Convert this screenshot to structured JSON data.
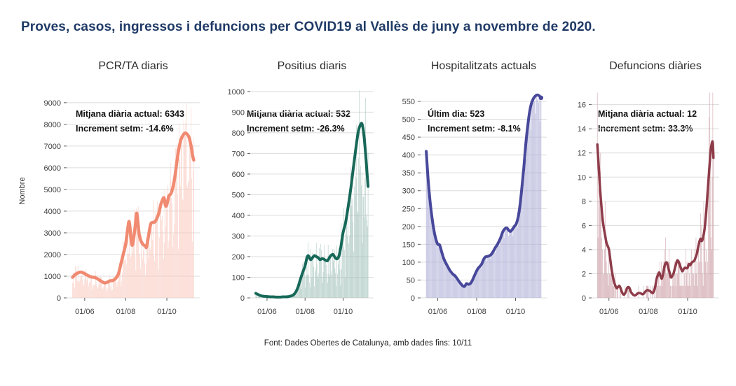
{
  "page": {
    "title": "Proves, casos, ingressos i defuncions per COVID19 al Vallès de juny a novembre de 2020.",
    "title_color": "#1f3a66",
    "footer": "Font: Dades Obertes de Catalunya, amb dades fins: 10/11",
    "y_axis_label": "Nombre",
    "background": "#ffffff",
    "gridline_color": "#dcdcdc",
    "axis_text_color": "#3f3f3f"
  },
  "chart_data": [
    {
      "type": "bar",
      "subtype": "daily-bars-with-trend-line",
      "title": "PCR/TA diaris",
      "annotation_lines": [
        "Mitjana diària actual: 6343",
        "Increment setm: -14.6%"
      ],
      "line_color": "#f08a71",
      "bar_color": "#f9c9be",
      "ymax": 9800,
      "yticks": [
        0,
        1000,
        2000,
        3000,
        4000,
        5000,
        6000,
        7000,
        8000,
        9000
      ],
      "days": 180,
      "xticks": [
        {
          "day": 18,
          "label": "01/06"
        },
        {
          "day": 79,
          "label": "01/08"
        },
        {
          "day": 140,
          "label": "01/10"
        }
      ],
      "trend": [
        [
          0,
          950
        ],
        [
          4,
          1080
        ],
        [
          8,
          1150
        ],
        [
          12,
          1190
        ],
        [
          16,
          1150
        ],
        [
          20,
          1080
        ],
        [
          24,
          1010
        ],
        [
          28,
          960
        ],
        [
          32,
          950
        ],
        [
          36,
          900
        ],
        [
          40,
          820
        ],
        [
          44,
          740
        ],
        [
          48,
          690
        ],
        [
          52,
          730
        ],
        [
          56,
          790
        ],
        [
          60,
          800
        ],
        [
          64,
          900
        ],
        [
          68,
          1100
        ],
        [
          72,
          1600
        ],
        [
          76,
          2100
        ],
        [
          79,
          2500
        ],
        [
          82,
          3200
        ],
        [
          84,
          3520
        ],
        [
          86,
          3000
        ],
        [
          88,
          2450
        ],
        [
          90,
          2600
        ],
        [
          93,
          3300
        ],
        [
          95,
          3900
        ],
        [
          97,
          3500
        ],
        [
          99,
          2900
        ],
        [
          102,
          2600
        ],
        [
          105,
          2450
        ],
        [
          108,
          2400
        ],
        [
          110,
          2350
        ],
        [
          113,
          2900
        ],
        [
          116,
          3400
        ],
        [
          119,
          3480
        ],
        [
          122,
          3500
        ],
        [
          125,
          3650
        ],
        [
          128,
          3900
        ],
        [
          131,
          4300
        ],
        [
          134,
          4550
        ],
        [
          136,
          4600
        ],
        [
          138,
          4250
        ],
        [
          140,
          4300
        ],
        [
          143,
          4700
        ],
        [
          146,
          4800
        ],
        [
          149,
          5100
        ],
        [
          152,
          5600
        ],
        [
          155,
          6300
        ],
        [
          158,
          6900
        ],
        [
          161,
          7300
        ],
        [
          164,
          7500
        ],
        [
          167,
          7600
        ],
        [
          170,
          7550
        ],
        [
          173,
          7400
        ],
        [
          176,
          7000
        ],
        [
          178,
          6600
        ],
        [
          180,
          6350
        ]
      ],
      "bar_model": {
        "seed": 7,
        "base": 0.55,
        "spread": 0.8,
        "weekend": 0.6,
        "cap": 9600,
        "integer": false
      },
      "end_dot": false
    },
    {
      "type": "bar",
      "subtype": "daily-bars-with-trend-line",
      "title": "Positius diaris",
      "annotation_lines": [
        "Mitjana diària actual: 532",
        "Increment setm: -26.3%"
      ],
      "line_color": "#176858",
      "bar_color": "#a2c1b9",
      "ymax": 1030,
      "yticks": [
        0,
        100,
        200,
        300,
        400,
        500,
        600,
        700,
        800,
        900,
        1000
      ],
      "days": 180,
      "xticks": [
        {
          "day": 18,
          "label": "01/06"
        },
        {
          "day": 79,
          "label": "01/08"
        },
        {
          "day": 140,
          "label": "01/10"
        }
      ],
      "trend": [
        [
          0,
          22
        ],
        [
          4,
          16
        ],
        [
          8,
          11
        ],
        [
          12,
          8
        ],
        [
          16,
          7
        ],
        [
          20,
          6
        ],
        [
          24,
          5
        ],
        [
          28,
          5
        ],
        [
          32,
          4
        ],
        [
          36,
          4
        ],
        [
          40,
          4
        ],
        [
          44,
          5
        ],
        [
          48,
          5
        ],
        [
          52,
          6
        ],
        [
          56,
          9
        ],
        [
          60,
          14
        ],
        [
          64,
          28
        ],
        [
          68,
          55
        ],
        [
          72,
          95
        ],
        [
          76,
          130
        ],
        [
          79,
          155
        ],
        [
          82,
          195
        ],
        [
          84,
          205
        ],
        [
          86,
          195
        ],
        [
          88,
          185
        ],
        [
          91,
          195
        ],
        [
          94,
          205
        ],
        [
          97,
          200
        ],
        [
          100,
          195
        ],
        [
          103,
          185
        ],
        [
          106,
          190
        ],
        [
          109,
          188
        ],
        [
          112,
          182
        ],
        [
          115,
          180
        ],
        [
          118,
          195
        ],
        [
          121,
          207
        ],
        [
          124,
          210
        ],
        [
          127,
          196
        ],
        [
          130,
          189
        ],
        [
          133,
          200
        ],
        [
          136,
          240
        ],
        [
          139,
          300
        ],
        [
          141,
          330
        ],
        [
          144,
          365
        ],
        [
          147,
          420
        ],
        [
          150,
          480
        ],
        [
          153,
          545
        ],
        [
          156,
          620
        ],
        [
          159,
          690
        ],
        [
          162,
          760
        ],
        [
          165,
          815
        ],
        [
          168,
          840
        ],
        [
          170,
          845
        ],
        [
          172,
          820
        ],
        [
          174,
          770
        ],
        [
          176,
          700
        ],
        [
          178,
          620
        ],
        [
          180,
          540
        ]
      ],
      "bar_model": {
        "seed": 13,
        "base": 0.5,
        "spread": 0.9,
        "weekend": 0.55,
        "cap": 1005,
        "integer": false
      },
      "end_dot": false
    },
    {
      "type": "bar",
      "subtype": "daily-bars-with-trend-line",
      "title": "Hospitalitzats actuals",
      "annotation_lines": [
        "Últim dia: 523",
        "Increment setm: -8.1%"
      ],
      "line_color": "#48489b",
      "bar_color": "#acacd6",
      "ymax": 595,
      "yticks": [
        0,
        50,
        100,
        150,
        200,
        250,
        300,
        350,
        400,
        450,
        500,
        550
      ],
      "days": 180,
      "xticks": [
        {
          "day": 18,
          "label": "01/06"
        },
        {
          "day": 79,
          "label": "01/08"
        },
        {
          "day": 140,
          "label": "01/10"
        }
      ],
      "trend": [
        [
          0,
          410
        ],
        [
          3,
          330
        ],
        [
          6,
          270
        ],
        [
          9,
          225
        ],
        [
          12,
          190
        ],
        [
          15,
          165
        ],
        [
          18,
          150
        ],
        [
          21,
          148
        ],
        [
          24,
          130
        ],
        [
          27,
          112
        ],
        [
          30,
          100
        ],
        [
          33,
          90
        ],
        [
          36,
          80
        ],
        [
          39,
          72
        ],
        [
          42,
          66
        ],
        [
          45,
          62
        ],
        [
          48,
          55
        ],
        [
          51,
          47
        ],
        [
          54,
          40
        ],
        [
          57,
          34
        ],
        [
          60,
          32
        ],
        [
          63,
          40
        ],
        [
          66,
          38
        ],
        [
          69,
          40
        ],
        [
          72,
          48
        ],
        [
          75,
          60
        ],
        [
          78,
          72
        ],
        [
          81,
          82
        ],
        [
          84,
          88
        ],
        [
          87,
          95
        ],
        [
          90,
          108
        ],
        [
          93,
          115
        ],
        [
          96,
          116
        ],
        [
          99,
          118
        ],
        [
          102,
          122
        ],
        [
          105,
          130
        ],
        [
          108,
          140
        ],
        [
          111,
          148
        ],
        [
          114,
          158
        ],
        [
          117,
          170
        ],
        [
          120,
          185
        ],
        [
          123,
          193
        ],
        [
          126,
          196
        ],
        [
          129,
          190
        ],
        [
          132,
          186
        ],
        [
          135,
          192
        ],
        [
          138,
          200
        ],
        [
          141,
          207
        ],
        [
          144,
          225
        ],
        [
          147,
          260
        ],
        [
          150,
          310
        ],
        [
          153,
          365
        ],
        [
          156,
          430
        ],
        [
          159,
          480
        ],
        [
          162,
          520
        ],
        [
          165,
          545
        ],
        [
          168,
          558
        ],
        [
          171,
          565
        ],
        [
          174,
          568
        ],
        [
          177,
          566
        ],
        [
          180,
          560
        ]
      ],
      "bar_model": {
        "seed": 21,
        "base": 0.965,
        "spread": 0.06,
        "weekend": 1.0,
        "cap": 590,
        "integer": false
      },
      "end_dot": true
    },
    {
      "type": "bar",
      "subtype": "daily-bars-with-trend-line",
      "title": "Defuncions diàries",
      "annotation_lines": [
        "Mitjana diària actual: 12",
        "Increment setm: 33.3%"
      ],
      "line_color": "#8e3c4a",
      "bar_color": "#c999a1",
      "ymax": 17.6,
      "yticks": [
        0,
        2,
        4,
        6,
        8,
        10,
        12,
        14,
        16
      ],
      "days": 180,
      "xticks": [
        {
          "day": 18,
          "label": "01/06"
        },
        {
          "day": 79,
          "label": "01/08"
        },
        {
          "day": 140,
          "label": "01/10"
        }
      ],
      "trend": [
        [
          0,
          12.7
        ],
        [
          2,
          11
        ],
        [
          4,
          9.2
        ],
        [
          6,
          7.8
        ],
        [
          8,
          6.6
        ],
        [
          10,
          5.8
        ],
        [
          12,
          5.2
        ],
        [
          14,
          4.6
        ],
        [
          16,
          4.3
        ],
        [
          18,
          4.0
        ],
        [
          20,
          3.2
        ],
        [
          22,
          2.4
        ],
        [
          24,
          1.8
        ],
        [
          26,
          1.3
        ],
        [
          28,
          1.0
        ],
        [
          30,
          0.8
        ],
        [
          32,
          0.9
        ],
        [
          34,
          1.0
        ],
        [
          36,
          0.8
        ],
        [
          38,
          0.5
        ],
        [
          40,
          0.3
        ],
        [
          42,
          0.3
        ],
        [
          44,
          0.5
        ],
        [
          46,
          0.8
        ],
        [
          48,
          0.9
        ],
        [
          50,
          0.8
        ],
        [
          52,
          0.5
        ],
        [
          54,
          0.35
        ],
        [
          56,
          0.25
        ],
        [
          58,
          0.2
        ],
        [
          60,
          0.25
        ],
        [
          62,
          0.35
        ],
        [
          64,
          0.4
        ],
        [
          66,
          0.4
        ],
        [
          68,
          0.35
        ],
        [
          70,
          0.3
        ],
        [
          72,
          0.35
        ],
        [
          74,
          0.5
        ],
        [
          76,
          0.6
        ],
        [
          78,
          0.65
        ],
        [
          80,
          0.6
        ],
        [
          82,
          0.55
        ],
        [
          84,
          0.45
        ],
        [
          86,
          0.4
        ],
        [
          88,
          0.6
        ],
        [
          90,
          1.0
        ],
        [
          92,
          1.6
        ],
        [
          94,
          1.9
        ],
        [
          96,
          2.1
        ],
        [
          98,
          1.8
        ],
        [
          100,
          1.6
        ],
        [
          102,
          2.0
        ],
        [
          104,
          2.6
        ],
        [
          106,
          2.9
        ],
        [
          108,
          2.9
        ],
        [
          110,
          2.5
        ],
        [
          112,
          2.1
        ],
        [
          114,
          1.7
        ],
        [
          116,
          1.8
        ],
        [
          118,
          2.0
        ],
        [
          120,
          2.4
        ],
        [
          122,
          2.8
        ],
        [
          124,
          3.1
        ],
        [
          126,
          3.0
        ],
        [
          128,
          2.7
        ],
        [
          130,
          2.4
        ],
        [
          132,
          2.2
        ],
        [
          134,
          2.4
        ],
        [
          136,
          2.5
        ],
        [
          138,
          2.45
        ],
        [
          140,
          2.5
        ],
        [
          142,
          2.8
        ],
        [
          144,
          2.7
        ],
        [
          146,
          2.9
        ],
        [
          148,
          3.0
        ],
        [
          150,
          3.05
        ],
        [
          152,
          3.3
        ],
        [
          154,
          3.6
        ],
        [
          156,
          4.1
        ],
        [
          158,
          4.6
        ],
        [
          160,
          4.9
        ],
        [
          162,
          4.7
        ],
        [
          164,
          5.0
        ],
        [
          166,
          5.6
        ],
        [
          168,
          6.6
        ],
        [
          170,
          8.0
        ],
        [
          172,
          9.5
        ],
        [
          174,
          11.0
        ],
        [
          176,
          12.3
        ],
        [
          178,
          12.9
        ],
        [
          179,
          12.8
        ],
        [
          180,
          11.6
        ]
      ],
      "bar_model": {
        "seed": 29,
        "base": 0.35,
        "spread": 1.25,
        "weekend": 0.6,
        "cap": 17,
        "integer": true
      },
      "end_dot": false
    }
  ]
}
